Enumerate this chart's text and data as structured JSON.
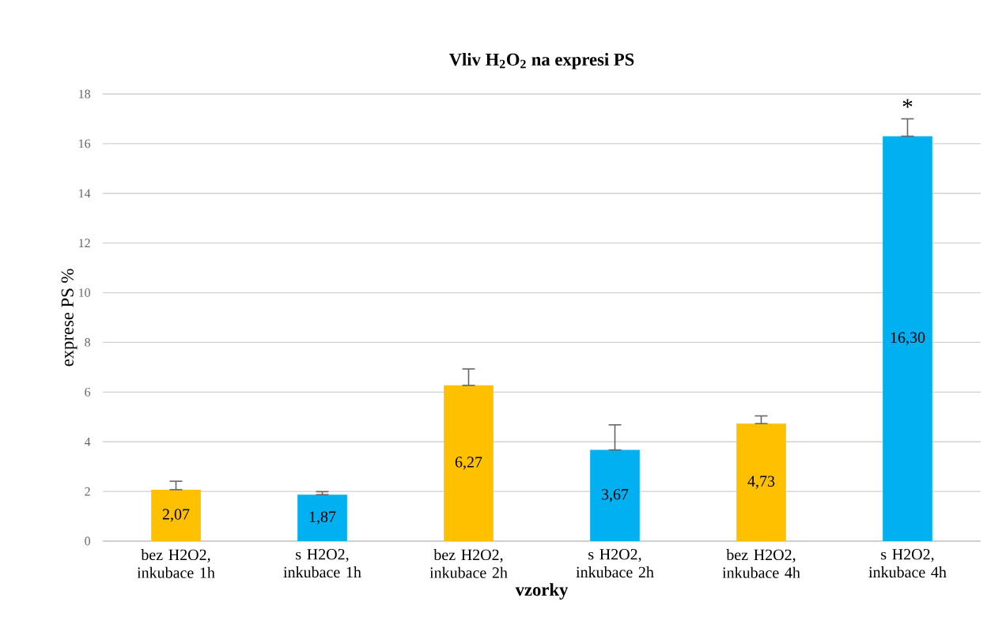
{
  "chart_data": {
    "type": "bar",
    "title": "Vliv H$_{2}$O$_{2}$ na expresi PS",
    "xlabel": "vzorky",
    "ylabel": "exprese PS %",
    "categories": [
      "bez H2O2, inkubace 1h",
      "s H2O2, inkubace 1h",
      "bez H2O2, inkubace 2h",
      "s H2O2, inkubace 2h",
      "bez H2O2, inkubace 4h",
      "s H2O2, inkubace 4h"
    ],
    "values": [
      2.07,
      1.87,
      6.27,
      3.67,
      4.73,
      16.3
    ],
    "value_labels": [
      "2,07",
      "1,87",
      "6,27",
      "3,67",
      "4,73",
      "16,30"
    ],
    "colors": [
      "#ffc000",
      "#00b0f0",
      "#ffc000",
      "#00b0f0",
      "#ffc000",
      "#00b0f0"
    ],
    "errors": [
      [
        2.07,
        2.41
      ],
      [
        1.87,
        1.99
      ],
      [
        6.27,
        6.93
      ],
      [
        3.67,
        4.68
      ],
      [
        4.73,
        5.04
      ],
      [
        16.3,
        17.0
      ]
    ],
    "annotations": [
      "*"
    ],
    "ylim": [
      0,
      18
    ],
    "yticks": [
      0,
      2,
      4,
      6,
      8,
      10,
      12,
      14,
      16,
      18
    ],
    "grid": "y"
  }
}
